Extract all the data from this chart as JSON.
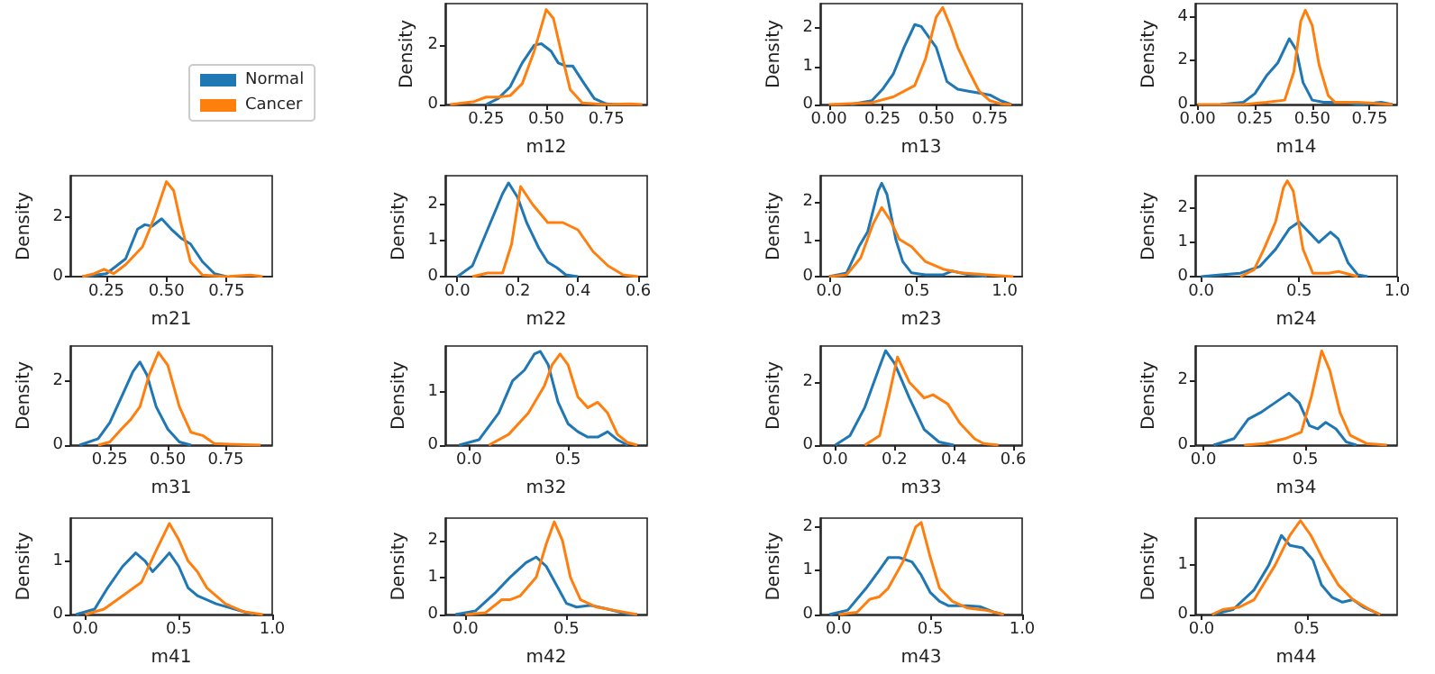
{
  "chart_data": [
    {
      "type": "line",
      "xlabel": "m12",
      "ylabel": "Density",
      "legend": "left",
      "xlim": [
        0.08,
        0.92
      ],
      "xticks": [
        0.25,
        {
          "value": 0.5,
          "label": "0.50"
        },
        0.75
      ],
      "ylim": [
        0,
        3.4
      ],
      "yticks": [
        0,
        2
      ],
      "series": [
        {
          "name": "Normal",
          "color": "#1f77b4",
          "x": [
            0.25,
            0.3,
            0.35,
            0.4,
            0.45,
            0.48,
            0.52,
            0.55,
            0.58,
            0.61,
            0.65,
            0.7,
            0.75,
            0.8
          ],
          "values": [
            0,
            0.2,
            0.6,
            1.4,
            2.0,
            2.05,
            1.8,
            1.4,
            1.3,
            1.3,
            0.8,
            0.2,
            0.02,
            0
          ]
        },
        {
          "name": "Cancer",
          "color": "#ff7f0e",
          "x": [
            0.1,
            0.2,
            0.25,
            0.3,
            0.35,
            0.4,
            0.45,
            0.5,
            0.53,
            0.57,
            0.6,
            0.65,
            0.75,
            0.85,
            0.9
          ],
          "values": [
            0,
            0.1,
            0.25,
            0.25,
            0.3,
            0.7,
            1.8,
            3.2,
            2.9,
            1.5,
            0.5,
            0.05,
            0,
            0.02,
            0
          ]
        }
      ]
    },
    {
      "type": "line",
      "xlabel": "m13",
      "ylabel": "Density",
      "xlim": [
        -0.04,
        0.9
      ],
      "xticks": [
        {
          "value": 0,
          "label": "0.00"
        },
        0.25,
        {
          "value": 0.5,
          "label": "0.50"
        },
        0.75
      ],
      "ylim": [
        0,
        2.65
      ],
      "yticks": [
        0,
        1,
        2
      ],
      "series": [
        {
          "color": "#1f77b4",
          "x": [
            0.1,
            0.2,
            0.25,
            0.3,
            0.35,
            0.4,
            0.43,
            0.5,
            0.55,
            0.6,
            0.65,
            0.7,
            0.75,
            0.8,
            0.85
          ],
          "values": [
            0,
            0.1,
            0.4,
            0.8,
            1.5,
            2.1,
            2.05,
            1.5,
            0.6,
            0.4,
            0.35,
            0.3,
            0.25,
            0.1,
            0
          ]
        },
        {
          "color": "#ff7f0e",
          "x": [
            0,
            0.2,
            0.3,
            0.4,
            0.45,
            0.5,
            0.53,
            0.57,
            0.6,
            0.65,
            0.7,
            0.75,
            0.8,
            0.85
          ],
          "values": [
            0,
            0.05,
            0.2,
            0.5,
            1.2,
            2.3,
            2.55,
            2.0,
            1.5,
            0.9,
            0.35,
            0.1,
            0.02,
            0
          ]
        }
      ]
    },
    {
      "type": "line",
      "xlabel": "m14",
      "ylabel": "Density",
      "xlim": [
        -0.01,
        0.87
      ],
      "xticks": [
        {
          "value": 0,
          "label": "0.00"
        },
        0.25,
        {
          "value": 0.5,
          "label": "0.50"
        },
        0.75
      ],
      "ylim": [
        0,
        4.6
      ],
      "yticks": [
        0,
        2,
        4
      ],
      "series": [
        {
          "color": "#1f77b4",
          "x": [
            0.1,
            0.2,
            0.25,
            0.3,
            0.35,
            0.4,
            0.43,
            0.46,
            0.5,
            0.55,
            0.6,
            0.65,
            0.7,
            0.8,
            0.85
          ],
          "values": [
            0,
            0.1,
            0.5,
            1.3,
            1.9,
            3.0,
            2.5,
            1.0,
            0.2,
            0.1,
            0.1,
            0.1,
            0,
            0.1,
            0
          ]
        },
        {
          "color": "#ff7f0e",
          "x": [
            0,
            0.2,
            0.3,
            0.38,
            0.42,
            0.45,
            0.47,
            0.5,
            0.53,
            0.57,
            0.6,
            0.7,
            0.85
          ],
          "values": [
            0,
            0,
            0.1,
            0.2,
            1.5,
            3.8,
            4.3,
            3.6,
            1.8,
            0.4,
            0.1,
            0.1,
            0
          ]
        }
      ]
    },
    {
      "type": "line",
      "xlabel": "m21",
      "ylabel": "Density",
      "xlim": [
        0.1,
        0.94
      ],
      "xticks": [
        0.25,
        {
          "value": 0.5,
          "label": "0.50"
        },
        0.75
      ],
      "ylim": [
        0,
        3.4
      ],
      "yticks": [
        0,
        2
      ],
      "series": [
        {
          "color": "#1f77b4",
          "x": [
            0.15,
            0.25,
            0.33,
            0.38,
            0.41,
            0.44,
            0.48,
            0.52,
            0.56,
            0.6,
            0.65,
            0.7,
            0.75
          ],
          "values": [
            0,
            0.1,
            0.6,
            1.6,
            1.75,
            1.7,
            1.95,
            1.6,
            1.3,
            1.1,
            0.5,
            0.1,
            0
          ]
        },
        {
          "color": "#ff7f0e",
          "x": [
            0.15,
            0.2,
            0.24,
            0.28,
            0.33,
            0.4,
            0.45,
            0.5,
            0.53,
            0.56,
            0.6,
            0.65,
            0.75,
            0.85,
            0.9
          ],
          "values": [
            0,
            0.1,
            0.25,
            0.1,
            0.4,
            1.0,
            2.0,
            3.2,
            2.9,
            1.8,
            0.5,
            0.05,
            0,
            0.05,
            0
          ]
        }
      ]
    },
    {
      "type": "line",
      "xlabel": "m22",
      "ylabel": "Density",
      "xlim": [
        -0.04,
        0.63
      ],
      "xticks": [
        {
          "value": 0,
          "label": "0.0"
        },
        0.2,
        0.4,
        0.6
      ],
      "ylim": [
        0,
        2.8
      ],
      "yticks": [
        0,
        1,
        2
      ],
      "series": [
        {
          "color": "#1f77b4",
          "x": [
            0,
            0.05,
            0.1,
            0.15,
            0.17,
            0.2,
            0.23,
            0.27,
            0.3,
            0.33,
            0.36,
            0.4
          ],
          "values": [
            0,
            0.3,
            1.3,
            2.3,
            2.6,
            2.2,
            1.5,
            0.8,
            0.4,
            0.25,
            0.05,
            0
          ]
        },
        {
          "color": "#ff7f0e",
          "x": [
            0.05,
            0.1,
            0.15,
            0.18,
            0.21,
            0.25,
            0.3,
            0.35,
            0.4,
            0.45,
            0.5,
            0.55,
            0.6
          ],
          "values": [
            0,
            0.1,
            0.1,
            0.9,
            2.5,
            2.0,
            1.5,
            1.5,
            1.3,
            0.7,
            0.3,
            0.05,
            0
          ]
        }
      ]
    },
    {
      "type": "line",
      "xlabel": "m23",
      "ylabel": "Density",
      "xlim": [
        -0.05,
        1.1
      ],
      "xticks": [
        {
          "value": 0,
          "label": "0.0"
        },
        0.5,
        {
          "value": 1,
          "label": "1.0"
        }
      ],
      "ylim": [
        0,
        2.7
      ],
      "yticks": [
        0,
        1,
        2
      ],
      "series": [
        {
          "color": "#1f77b4",
          "x": [
            0,
            0.1,
            0.17,
            0.22,
            0.28,
            0.3,
            0.33,
            0.38,
            0.42,
            0.47,
            0.55,
            0.65,
            0.7,
            0.8,
            0.9
          ],
          "values": [
            0,
            0.1,
            0.8,
            1.2,
            2.3,
            2.5,
            2.2,
            1.0,
            0.4,
            0.1,
            0.05,
            0.05,
            0.15,
            0.05,
            0
          ]
        },
        {
          "color": "#ff7f0e",
          "x": [
            0,
            0.1,
            0.18,
            0.25,
            0.3,
            0.35,
            0.4,
            0.47,
            0.55,
            0.65,
            0.75,
            0.9,
            1.05
          ],
          "values": [
            0,
            0.05,
            0.5,
            1.4,
            1.85,
            1.5,
            1.0,
            0.8,
            0.4,
            0.2,
            0.1,
            0.05,
            0
          ]
        }
      ]
    },
    {
      "type": "line",
      "xlabel": "m24",
      "ylabel": "Density",
      "xlim": [
        -0.03,
        1.0
      ],
      "xticks": [
        {
          "value": 0,
          "label": "0.0"
        },
        0.5,
        {
          "value": 1,
          "label": "1.0"
        }
      ],
      "ylim": [
        0,
        2.95
      ],
      "yticks": [
        0,
        1,
        2
      ],
      "series": [
        {
          "color": "#1f77b4",
          "x": [
            0,
            0.1,
            0.2,
            0.3,
            0.38,
            0.45,
            0.5,
            0.55,
            0.6,
            0.66,
            0.7,
            0.75,
            0.8,
            0.85
          ],
          "values": [
            0,
            0.05,
            0.1,
            0.3,
            0.8,
            1.4,
            1.6,
            1.3,
            1.0,
            1.3,
            1.1,
            0.4,
            0.05,
            0
          ]
        },
        {
          "color": "#ff7f0e",
          "x": [
            0.2,
            0.27,
            0.32,
            0.38,
            0.42,
            0.44,
            0.47,
            0.52,
            0.57,
            0.65,
            0.7,
            0.8
          ],
          "values": [
            0,
            0.2,
            0.8,
            1.6,
            2.6,
            2.8,
            2.5,
            0.8,
            0.1,
            0.1,
            0.15,
            0
          ]
        }
      ]
    },
    {
      "type": "line",
      "xlabel": "m31",
      "ylabel": "Density",
      "xlim": [
        0.08,
        0.95
      ],
      "xticks": [
        0.25,
        {
          "value": 0.5,
          "label": "0.50"
        },
        0.75
      ],
      "ylim": [
        0,
        3.1
      ],
      "yticks": [
        0,
        2
      ],
      "series": [
        {
          "color": "#1f77b4",
          "x": [
            0.12,
            0.2,
            0.25,
            0.3,
            0.35,
            0.38,
            0.41,
            0.45,
            0.5,
            0.55,
            0.6
          ],
          "values": [
            0,
            0.2,
            0.7,
            1.5,
            2.3,
            2.6,
            2.2,
            1.2,
            0.5,
            0.1,
            0
          ]
        },
        {
          "color": "#ff7f0e",
          "x": [
            0.2,
            0.25,
            0.3,
            0.34,
            0.38,
            0.42,
            0.46,
            0.5,
            0.55,
            0.6,
            0.65,
            0.7,
            0.8,
            0.9
          ],
          "values": [
            0,
            0.1,
            0.5,
            0.8,
            1.2,
            2.2,
            2.9,
            2.5,
            1.2,
            0.4,
            0.3,
            0.05,
            0.02,
            0
          ]
        }
      ]
    },
    {
      "type": "line",
      "xlabel": "m32",
      "ylabel": "Density",
      "xlim": [
        -0.12,
        0.9
      ],
      "xticks": [
        {
          "value": 0,
          "label": "0.0"
        },
        0.5
      ],
      "ylim": [
        0,
        1.85
      ],
      "yticks": [
        0,
        1
      ],
      "series": [
        {
          "color": "#1f77b4",
          "x": [
            -0.05,
            0.05,
            0.15,
            0.22,
            0.28,
            0.33,
            0.36,
            0.4,
            0.45,
            0.5,
            0.55,
            0.6,
            0.65,
            0.7,
            0.75,
            0.8
          ],
          "values": [
            0,
            0.1,
            0.6,
            1.2,
            1.4,
            1.7,
            1.75,
            1.5,
            0.8,
            0.4,
            0.25,
            0.15,
            0.15,
            0.25,
            0.1,
            0
          ]
        },
        {
          "color": "#ff7f0e",
          "x": [
            0.1,
            0.2,
            0.3,
            0.38,
            0.42,
            0.46,
            0.5,
            0.55,
            0.6,
            0.65,
            0.7,
            0.75,
            0.8,
            0.85
          ],
          "values": [
            0,
            0.2,
            0.6,
            1.1,
            1.5,
            1.7,
            1.5,
            0.9,
            0.7,
            0.8,
            0.6,
            0.2,
            0.05,
            0
          ]
        }
      ]
    },
    {
      "type": "line",
      "xlabel": "m33",
      "ylabel": "Density",
      "xlim": [
        -0.05,
        0.63
      ],
      "xticks": [
        {
          "value": 0,
          "label": "0.0"
        },
        0.2,
        0.4,
        0.6
      ],
      "ylim": [
        0,
        3.15
      ],
      "yticks": [
        0,
        2
      ],
      "series": [
        {
          "color": "#1f77b4",
          "x": [
            0,
            0.05,
            0.1,
            0.15,
            0.17,
            0.2,
            0.25,
            0.3,
            0.35,
            0.4
          ],
          "values": [
            0,
            0.3,
            1.2,
            2.5,
            3.0,
            2.6,
            1.5,
            0.5,
            0.1,
            0
          ]
        },
        {
          "color": "#ff7f0e",
          "x": [
            0.1,
            0.15,
            0.18,
            0.21,
            0.25,
            0.3,
            0.33,
            0.38,
            0.42,
            0.47,
            0.5,
            0.55
          ],
          "values": [
            0,
            0.3,
            1.5,
            2.8,
            2.0,
            1.5,
            1.6,
            1.3,
            0.7,
            0.2,
            0.05,
            0
          ]
        }
      ]
    },
    {
      "type": "line",
      "xlabel": "m34",
      "ylabel": "Density",
      "xlim": [
        -0.04,
        0.95
      ],
      "xticks": [
        {
          "value": 0,
          "label": "0.0"
        },
        0.5
      ],
      "ylim": [
        0,
        3.05
      ],
      "yticks": [
        0,
        2
      ],
      "series": [
        {
          "color": "#1f77b4",
          "x": [
            0.05,
            0.15,
            0.22,
            0.28,
            0.35,
            0.42,
            0.47,
            0.52,
            0.56,
            0.6,
            0.65,
            0.7,
            0.75
          ],
          "values": [
            0,
            0.2,
            0.8,
            1.0,
            1.3,
            1.6,
            1.3,
            0.6,
            0.5,
            0.7,
            0.5,
            0.1,
            0
          ]
        },
        {
          "color": "#ff7f0e",
          "x": [
            0.2,
            0.3,
            0.4,
            0.48,
            0.53,
            0.58,
            0.62,
            0.67,
            0.72,
            0.8,
            0.9
          ],
          "values": [
            0,
            0.05,
            0.2,
            0.4,
            1.5,
            2.9,
            2.3,
            1.0,
            0.3,
            0.05,
            0
          ]
        }
      ]
    },
    {
      "type": "line",
      "xlabel": "m41",
      "ylabel": "Density",
      "xlim": [
        -0.08,
        1.0
      ],
      "xticks": [
        {
          "value": 0,
          "label": "0.0"
        },
        0.5,
        {
          "value": 1,
          "label": "1.0"
        }
      ],
      "ylim": [
        0,
        1.8
      ],
      "yticks": [
        0,
        1
      ],
      "series": [
        {
          "color": "#1f77b4",
          "x": [
            -0.05,
            0.05,
            0.12,
            0.2,
            0.27,
            0.32,
            0.36,
            0.4,
            0.45,
            0.5,
            0.55,
            0.6,
            0.7,
            0.8,
            0.9
          ],
          "values": [
            0,
            0.1,
            0.5,
            0.9,
            1.15,
            1.0,
            0.8,
            0.95,
            1.15,
            0.9,
            0.5,
            0.35,
            0.2,
            0.1,
            0
          ]
        },
        {
          "color": "#ff7f0e",
          "x": [
            0,
            0.1,
            0.2,
            0.3,
            0.38,
            0.45,
            0.5,
            0.55,
            0.6,
            0.65,
            0.75,
            0.85,
            0.95
          ],
          "values": [
            0,
            0.1,
            0.35,
            0.6,
            1.2,
            1.7,
            1.4,
            1.0,
            0.8,
            0.5,
            0.2,
            0.05,
            0
          ]
        }
      ]
    },
    {
      "type": "line",
      "xlabel": "m42",
      "ylabel": "Density",
      "xlim": [
        -0.1,
        0.9
      ],
      "xticks": [
        {
          "value": 0,
          "label": "0.0"
        },
        0.5
      ],
      "ylim": [
        0,
        2.6
      ],
      "yticks": [
        0,
        1,
        2
      ],
      "series": [
        {
          "color": "#1f77b4",
          "x": [
            -0.05,
            0.05,
            0.15,
            0.22,
            0.3,
            0.35,
            0.4,
            0.45,
            0.5,
            0.55,
            0.62,
            0.7,
            0.8,
            0.85
          ],
          "values": [
            0,
            0.1,
            0.6,
            1.0,
            1.4,
            1.55,
            1.3,
            0.8,
            0.3,
            0.2,
            0.25,
            0.15,
            0.02,
            0
          ]
        },
        {
          "color": "#ff7f0e",
          "x": [
            0,
            0.1,
            0.18,
            0.22,
            0.27,
            0.35,
            0.4,
            0.44,
            0.48,
            0.52,
            0.57,
            0.65,
            0.75,
            0.85
          ],
          "values": [
            0,
            0.05,
            0.4,
            0.4,
            0.5,
            1.0,
            1.9,
            2.5,
            2.0,
            1.0,
            0.4,
            0.2,
            0.1,
            0
          ]
        }
      ]
    },
    {
      "type": "line",
      "xlabel": "m43",
      "ylabel": "Density",
      "xlim": [
        -0.1,
        1.0
      ],
      "xticks": [
        {
          "value": 0,
          "label": "0.0"
        },
        0.5,
        {
          "value": 1,
          "label": "1.0"
        }
      ],
      "ylim": [
        0,
        2.2
      ],
      "yticks": [
        0,
        1,
        2
      ],
      "series": [
        {
          "color": "#1f77b4",
          "x": [
            -0.05,
            0.05,
            0.15,
            0.22,
            0.27,
            0.33,
            0.4,
            0.45,
            0.5,
            0.55,
            0.6,
            0.7,
            0.77,
            0.85,
            0.9
          ],
          "values": [
            0,
            0.1,
            0.6,
            1.0,
            1.3,
            1.3,
            1.2,
            0.9,
            0.5,
            0.3,
            0.2,
            0.2,
            0.18,
            0.05,
            0
          ]
        },
        {
          "color": "#ff7f0e",
          "x": [
            0,
            0.1,
            0.17,
            0.22,
            0.27,
            0.35,
            0.42,
            0.45,
            0.5,
            0.55,
            0.62,
            0.7,
            0.8,
            0.9
          ],
          "values": [
            0,
            0.05,
            0.35,
            0.4,
            0.6,
            1.2,
            2.0,
            2.1,
            1.3,
            0.6,
            0.3,
            0.15,
            0.1,
            0
          ]
        }
      ]
    },
    {
      "type": "line",
      "xlabel": "m44",
      "ylabel": "Density",
      "xlim": [
        -0.03,
        0.93
      ],
      "xticks": [
        {
          "value": 0,
          "label": "0.0"
        },
        0.5
      ],
      "ylim": [
        0,
        1.95
      ],
      "yticks": [
        0,
        1
      ],
      "series": [
        {
          "color": "#1f77b4",
          "x": [
            0.05,
            0.15,
            0.25,
            0.32,
            0.38,
            0.42,
            0.48,
            0.53,
            0.57,
            0.62,
            0.67,
            0.72,
            0.77,
            0.85
          ],
          "values": [
            0,
            0.1,
            0.5,
            1.0,
            1.6,
            1.4,
            1.35,
            1.1,
            0.6,
            0.35,
            0.25,
            0.3,
            0.15,
            0
          ]
        },
        {
          "color": "#ff7f0e",
          "x": [
            0.05,
            0.1,
            0.18,
            0.25,
            0.35,
            0.42,
            0.47,
            0.52,
            0.58,
            0.65,
            0.72,
            0.8,
            0.85
          ],
          "values": [
            0,
            0.1,
            0.15,
            0.3,
            1.0,
            1.6,
            1.9,
            1.6,
            1.1,
            0.6,
            0.3,
            0.1,
            0
          ]
        }
      ]
    }
  ]
}
